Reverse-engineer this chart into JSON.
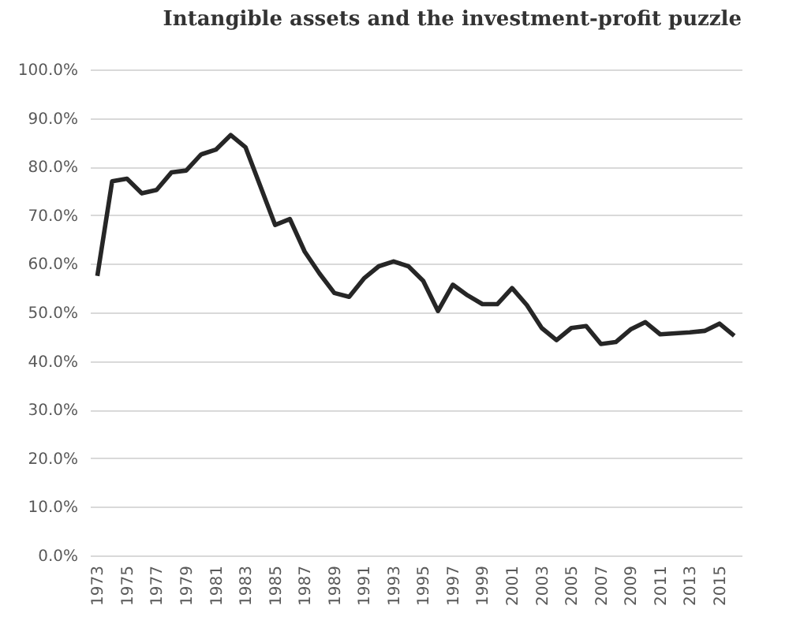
{
  "chart_data": {
    "type": "line",
    "title": "Intangible assets and the investment-profit puzzle",
    "x": [
      1973,
      1974,
      1975,
      1976,
      1977,
      1978,
      1979,
      1980,
      1981,
      1982,
      1983,
      1984,
      1985,
      1986,
      1987,
      1988,
      1989,
      1990,
      1991,
      1992,
      1993,
      1994,
      1995,
      1996,
      1997,
      1998,
      1999,
      2000,
      2001,
      2002,
      2003,
      2004,
      2005,
      2006,
      2007,
      2008,
      2009,
      2010,
      2011,
      2012,
      2013,
      2014,
      2015,
      2016
    ],
    "series": [
      {
        "color": "#262626",
        "values": [
          57.5,
          77,
          77.5,
          74.5,
          75.2,
          78.8,
          79.2,
          82.5,
          83.5,
          86.5,
          84,
          76,
          68,
          69.2,
          62.5,
          58,
          54,
          53.2,
          57,
          59.5,
          60.5,
          59.5,
          56.5,
          50.3,
          55.7,
          53.5,
          51.7,
          51.7,
          55,
          51.5,
          46.8,
          44.3,
          46.8,
          47.2,
          43.5,
          43.9,
          46.5,
          48,
          45.5,
          45.7,
          45.9,
          46.2,
          47.7,
          45.2
        ]
      }
    ],
    "xlim": [
      1972.5,
      2016.5
    ],
    "xticks": [
      1973,
      1975,
      1977,
      1979,
      1981,
      1983,
      1985,
      1987,
      1989,
      1991,
      1993,
      1995,
      1997,
      1999,
      2001,
      2003,
      2005,
      2007,
      2009,
      2011,
      2013,
      2015
    ],
    "ylim": [
      0,
      100
    ],
    "yticks": [
      {
        "value": 0,
        "label": "0.0%"
      },
      {
        "value": 10,
        "label": "10.0%"
      },
      {
        "value": 20,
        "label": "20.0%"
      },
      {
        "value": 30,
        "label": "30.0%"
      },
      {
        "value": 40,
        "label": "40.0%"
      },
      {
        "value": 50,
        "label": "50.0%"
      },
      {
        "value": 60,
        "label": "60.0%"
      },
      {
        "value": 70,
        "label": "70.0%"
      },
      {
        "value": 80,
        "label": "80.0%"
      },
      {
        "value": 90,
        "label": "90.0%"
      },
      {
        "value": 100,
        "label": "100.0%"
      }
    ],
    "grid": "y",
    "marker": "none",
    "line_style": "solid"
  }
}
